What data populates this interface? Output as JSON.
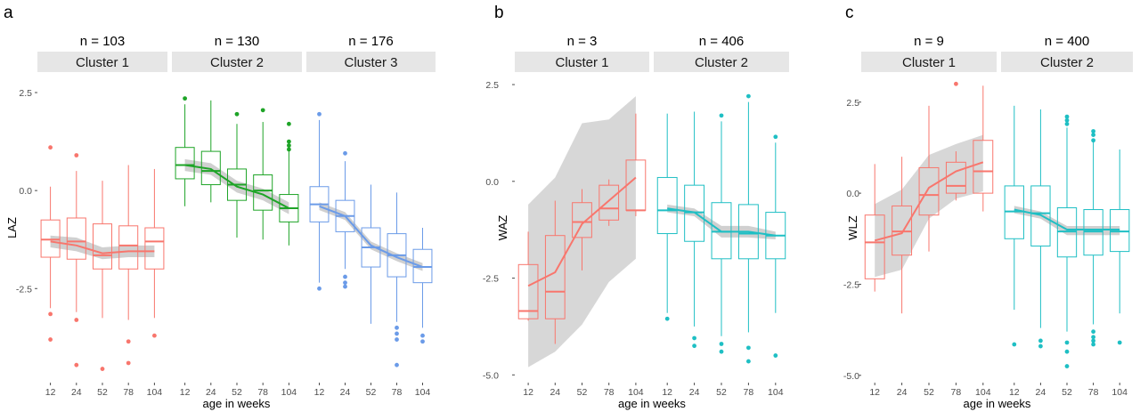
{
  "panels": [
    {
      "label": "a",
      "ylabel": "LAZ",
      "xlabel": "age in weeks",
      "ylim": [
        -4.9,
        3.0
      ],
      "yticks": [
        {
          "value": 2.5,
          "label": "2.5"
        },
        {
          "value": 0.0,
          "label": "0.0"
        },
        {
          "value": -2.5,
          "label": "-2.5"
        }
      ],
      "xticks": [
        "12",
        "24",
        "52",
        "78",
        "104"
      ],
      "facets": [
        {
          "n_label": "n = 103",
          "strip": "Cluster 1",
          "color": "#F8766D",
          "band": "#c8c8c8",
          "boxes": [
            {
              "q1": -1.7,
              "median": -1.25,
              "q3": -0.75,
              "lo": -3.0,
              "hi": 0.1,
              "outliers": [
                1.1,
                -3.15,
                -3.8
              ]
            },
            {
              "q1": -1.75,
              "median": -1.3,
              "q3": -0.7,
              "lo": -3.1,
              "hi": 0.5,
              "outliers": [
                0.9,
                -3.3,
                -4.45
              ]
            },
            {
              "q1": -2.0,
              "median": -1.65,
              "q3": -0.85,
              "lo": -3.25,
              "hi": 0.25,
              "outliers": [
                -4.55
              ]
            },
            {
              "q1": -2.0,
              "median": -1.4,
              "q3": -0.9,
              "lo": -3.3,
              "hi": 0.65,
              "outliers": [
                -3.85,
                -4.4
              ]
            },
            {
              "q1": -2.0,
              "median": -1.3,
              "q3": -0.95,
              "lo": -3.25,
              "hi": 0.55,
              "outliers": [
                -3.7
              ]
            }
          ],
          "trend": [
            -1.3,
            -1.4,
            -1.6,
            -1.55,
            -1.55
          ],
          "band_lo": [
            -1.15,
            -1.2,
            -1.45,
            -1.4,
            -1.4
          ],
          "band_hi": [
            -1.45,
            -1.55,
            -1.75,
            -1.7,
            -1.7
          ]
        },
        {
          "n_label": "n = 130",
          "strip": "Cluster 2",
          "color": "#1EA427",
          "band": "#c8c8c8",
          "boxes": [
            {
              "q1": 0.3,
              "median": 0.65,
              "q3": 1.1,
              "lo": -0.4,
              "hi": 2.2,
              "outliers": [
                2.35
              ]
            },
            {
              "q1": 0.15,
              "median": 0.5,
              "q3": 1.0,
              "lo": -0.3,
              "hi": 2.3,
              "outliers": []
            },
            {
              "q1": -0.25,
              "median": 0.15,
              "q3": 0.55,
              "lo": -1.2,
              "hi": 1.7,
              "outliers": [
                1.95
              ]
            },
            {
              "q1": -0.5,
              "median": 0.0,
              "q3": 0.4,
              "lo": -1.25,
              "hi": 1.75,
              "outliers": [
                2.05
              ]
            },
            {
              "q1": -0.8,
              "median": -0.45,
              "q3": -0.1,
              "lo": -1.4,
              "hi": 1.25,
              "outliers": [
                1.7,
                1.25,
                1.15,
                1.05
              ]
            }
          ],
          "trend": [
            0.65,
            0.55,
            0.1,
            -0.1,
            -0.45
          ],
          "band_lo": [
            0.8,
            0.7,
            0.25,
            0.05,
            -0.3
          ],
          "band_hi": [
            0.5,
            0.4,
            -0.05,
            -0.25,
            -0.6
          ]
        },
        {
          "n_label": "n = 176",
          "strip": "Cluster 3",
          "color": "#6B9BE8",
          "band": "#c8c8c8",
          "boxes": [
            {
              "q1": -0.8,
              "median": -0.35,
              "q3": 0.1,
              "lo": -2.35,
              "hi": 1.8,
              "outliers": [
                1.95,
                -2.5
              ]
            },
            {
              "q1": -1.05,
              "median": -0.65,
              "q3": -0.25,
              "lo": -2.0,
              "hi": 0.75,
              "outliers": [
                0.95,
                -2.2,
                -2.35,
                -2.45
              ]
            },
            {
              "q1": -1.95,
              "median": -1.45,
              "q3": -0.95,
              "lo": -3.4,
              "hi": 0.15,
              "outliers": []
            },
            {
              "q1": -2.2,
              "median": -1.65,
              "q3": -1.1,
              "lo": -3.35,
              "hi": -0.05,
              "outliers": [
                -3.5,
                -3.65,
                -3.8,
                -4.45
              ]
            },
            {
              "q1": -2.35,
              "median": -1.95,
              "q3": -1.5,
              "lo": -3.5,
              "hi": -0.95,
              "outliers": [
                -3.7,
                -3.85
              ]
            }
          ],
          "trend": [
            -0.4,
            -0.65,
            -1.4,
            -1.7,
            -1.95
          ],
          "band_lo": [
            -0.3,
            -0.55,
            -1.3,
            -1.6,
            -1.85
          ],
          "band_hi": [
            -0.5,
            -0.75,
            -1.5,
            -1.8,
            -2.05
          ]
        }
      ]
    },
    {
      "label": "b",
      "ylabel": "WAZ",
      "xlabel": "age in weeks",
      "ylim": [
        -5.2,
        2.8
      ],
      "yticks": [
        {
          "value": 2.5,
          "label": "2.5"
        },
        {
          "value": 0.0,
          "label": "0.0"
        },
        {
          "value": -2.5,
          "label": "-2.5"
        },
        {
          "value": -5.0,
          "label": "-5.0"
        }
      ],
      "xticks": [
        "12",
        "24",
        "52",
        "78",
        "104"
      ],
      "facets": [
        {
          "n_label": "n = 3",
          "strip": "Cluster 1",
          "color": "#F8766D",
          "band": "#d0d0d0",
          "boxes": [
            {
              "q1": -3.55,
              "median": -3.35,
              "q3": -2.15,
              "lo": -3.6,
              "hi": -1.3,
              "outliers": []
            },
            {
              "q1": -3.55,
              "median": -2.85,
              "q3": -1.4,
              "lo": -4.2,
              "hi": -0.5,
              "outliers": []
            },
            {
              "q1": -1.45,
              "median": -1.05,
              "q3": -0.55,
              "lo": -2.3,
              "hi": -0.2,
              "outliers": []
            },
            {
              "q1": -1.0,
              "median": -0.7,
              "q3": -0.1,
              "lo": -1.15,
              "hi": 0.05,
              "outliers": []
            },
            {
              "q1": -0.75,
              "median": -0.75,
              "q3": 0.55,
              "lo": -0.9,
              "hi": 1.75,
              "outliers": []
            }
          ],
          "trend": [
            -2.7,
            -2.35,
            -1.1,
            -0.5,
            0.1
          ],
          "band_lo": [
            -0.6,
            0.1,
            1.5,
            1.6,
            2.2
          ],
          "band_hi": [
            -4.8,
            -4.4,
            -3.7,
            -2.6,
            -2.0
          ]
        },
        {
          "n_label": "n = 406",
          "strip": "Cluster 2",
          "color": "#1FBFC4",
          "band": "#c8c8c8",
          "boxes": [
            {
              "q1": -1.35,
              "median": -0.75,
              "q3": 0.1,
              "lo": -3.4,
              "hi": 1.75,
              "outliers": [
                -3.55
              ]
            },
            {
              "q1": -1.55,
              "median": -0.8,
              "q3": -0.1,
              "lo": -3.75,
              "hi": 1.8,
              "outliers": [
                -4.05,
                -4.25
              ]
            },
            {
              "q1": -2.0,
              "median": -1.3,
              "q3": -0.55,
              "lo": -4.0,
              "hi": 1.55,
              "outliers": [
                1.7,
                -4.2,
                -4.4
              ]
            },
            {
              "q1": -2.0,
              "median": -1.35,
              "q3": -0.6,
              "lo": -3.9,
              "hi": 2.05,
              "outliers": [
                2.2,
                -4.3,
                -4.65
              ]
            },
            {
              "q1": -2.0,
              "median": -1.4,
              "q3": -0.8,
              "lo": -3.4,
              "hi": 1.0,
              "outliers": [
                1.15,
                -4.5
              ]
            }
          ],
          "trend": [
            -0.7,
            -0.8,
            -1.3,
            -1.3,
            -1.4
          ],
          "band_lo": [
            -0.6,
            -0.7,
            -1.15,
            -1.15,
            -1.3
          ],
          "band_hi": [
            -0.8,
            -0.9,
            -1.45,
            -1.45,
            -1.5
          ]
        }
      ]
    },
    {
      "label": "c",
      "ylabel": "WLZ",
      "xlabel": "age in weeks",
      "ylim": [
        -5.2,
        3.3
      ],
      "yticks": [
        {
          "value": 2.5,
          "label": "2.5"
        },
        {
          "value": 0.0,
          "label": "0.0"
        },
        {
          "value": -2.5,
          "label": "-2.5"
        },
        {
          "value": -5.0,
          "label": "-5.0"
        }
      ],
      "xticks": [
        "12",
        "24",
        "52",
        "78",
        "104"
      ],
      "facets": [
        {
          "n_label": "n = 9",
          "strip": "Cluster 1",
          "color": "#F8766D",
          "band": "#d0d0d0",
          "boxes": [
            {
              "q1": -2.35,
              "median": -1.35,
              "q3": -0.6,
              "lo": -2.7,
              "hi": 0.8,
              "outliers": []
            },
            {
              "q1": -1.7,
              "median": -1.05,
              "q3": -0.35,
              "lo": -3.3,
              "hi": 1.0,
              "outliers": []
            },
            {
              "q1": -0.6,
              "median": -0.05,
              "q3": 0.7,
              "lo": -1.6,
              "hi": 2.4,
              "outliers": []
            },
            {
              "q1": 0.0,
              "median": 0.2,
              "q3": 0.85,
              "lo": -0.2,
              "hi": 1.15,
              "outliers": [
                3.0
              ]
            },
            {
              "q1": 0.0,
              "median": 0.6,
              "q3": 1.45,
              "lo": -0.5,
              "hi": 2.95,
              "outliers": []
            }
          ],
          "trend": [
            -1.3,
            -1.1,
            0.15,
            0.6,
            0.85
          ],
          "band_lo": [
            -0.3,
            0.1,
            1.05,
            1.35,
            1.6
          ],
          "band_hi": [
            -2.3,
            -2.1,
            -0.7,
            -0.15,
            0.05
          ]
        },
        {
          "n_label": "n = 400",
          "strip": "Cluster 2",
          "color": "#1FBFC4",
          "band": "#c8c8c8",
          "boxes": [
            {
              "q1": -1.25,
              "median": -0.5,
              "q3": 0.2,
              "lo": -3.2,
              "hi": 2.4,
              "outliers": [
                -4.15
              ]
            },
            {
              "q1": -1.45,
              "median": -0.55,
              "q3": 0.2,
              "lo": -3.7,
              "hi": 2.3,
              "outliers": [
                -4.05,
                -4.2
              ]
            },
            {
              "q1": -1.75,
              "median": -1.05,
              "q3": -0.4,
              "lo": -3.8,
              "hi": 1.8,
              "outliers": [
                2.1,
                2.0,
                1.9,
                -4.1,
                -4.35,
                -4.75
              ]
            },
            {
              "q1": -1.7,
              "median": -1.05,
              "q3": -0.45,
              "lo": -3.6,
              "hi": 1.4,
              "outliers": [
                1.7,
                1.6,
                1.45,
                -3.8,
                -3.95,
                -4.05,
                -4.15
              ]
            },
            {
              "q1": -1.6,
              "median": -1.05,
              "q3": -0.45,
              "lo": -3.3,
              "hi": 1.2,
              "outliers": [
                -4.1
              ]
            }
          ],
          "trend": [
            -0.45,
            -0.6,
            -1.0,
            -1.0,
            -1.0
          ],
          "band_lo": [
            -0.35,
            -0.5,
            -0.9,
            -0.9,
            -0.9
          ],
          "band_hi": [
            -0.55,
            -0.7,
            -1.15,
            -1.15,
            -1.15
          ]
        }
      ]
    }
  ],
  "chart_data": [
    {
      "type": "box",
      "panel": "a",
      "ylabel": "LAZ",
      "xlabel": "age in weeks",
      "categories": [
        "12",
        "24",
        "52",
        "78",
        "104"
      ],
      "ylim": [
        -4.9,
        3.0
      ],
      "series": [
        {
          "name": "Cluster 1",
          "n": "n = 103",
          "medians": [
            -1.25,
            -1.3,
            -1.65,
            -1.4,
            -1.3
          ],
          "trend": [
            -1.3,
            -1.4,
            -1.6,
            -1.55,
            -1.55
          ]
        },
        {
          "name": "Cluster 2",
          "n": "n = 130",
          "medians": [
            0.65,
            0.5,
            0.15,
            0.0,
            -0.45
          ],
          "trend": [
            0.65,
            0.55,
            0.1,
            -0.1,
            -0.45
          ]
        },
        {
          "name": "Cluster 3",
          "n": "n = 176",
          "medians": [
            -0.35,
            -0.65,
            -1.45,
            -1.65,
            -1.95
          ],
          "trend": [
            -0.4,
            -0.65,
            -1.4,
            -1.7,
            -1.95
          ]
        }
      ]
    },
    {
      "type": "box",
      "panel": "b",
      "ylabel": "WAZ",
      "xlabel": "age in weeks",
      "categories": [
        "12",
        "24",
        "52",
        "78",
        "104"
      ],
      "ylim": [
        -5.2,
        2.8
      ],
      "series": [
        {
          "name": "Cluster 1",
          "n": "n = 3",
          "medians": [
            -3.35,
            -2.85,
            -1.05,
            -0.7,
            -0.75
          ],
          "trend": [
            -2.7,
            -2.35,
            -1.1,
            -0.5,
            0.1
          ]
        },
        {
          "name": "Cluster 2",
          "n": "n = 406",
          "medians": [
            -0.75,
            -0.8,
            -1.3,
            -1.35,
            -1.4
          ],
          "trend": [
            -0.7,
            -0.8,
            -1.3,
            -1.3,
            -1.4
          ]
        }
      ]
    },
    {
      "type": "box",
      "panel": "c",
      "ylabel": "WLZ",
      "xlabel": "age in weeks",
      "categories": [
        "12",
        "24",
        "52",
        "78",
        "104"
      ],
      "ylim": [
        -5.2,
        3.3
      ],
      "series": [
        {
          "name": "Cluster 1",
          "n": "n = 9",
          "medians": [
            -1.35,
            -1.05,
            -0.05,
            0.2,
            0.6
          ],
          "trend": [
            -1.3,
            -1.1,
            0.15,
            0.6,
            0.85
          ]
        },
        {
          "name": "Cluster 2",
          "n": "n = 400",
          "medians": [
            -0.5,
            -0.55,
            -1.05,
            -1.05,
            -1.05
          ],
          "trend": [
            -0.45,
            -0.6,
            -1.0,
            -1.0,
            -1.0
          ]
        }
      ]
    }
  ]
}
